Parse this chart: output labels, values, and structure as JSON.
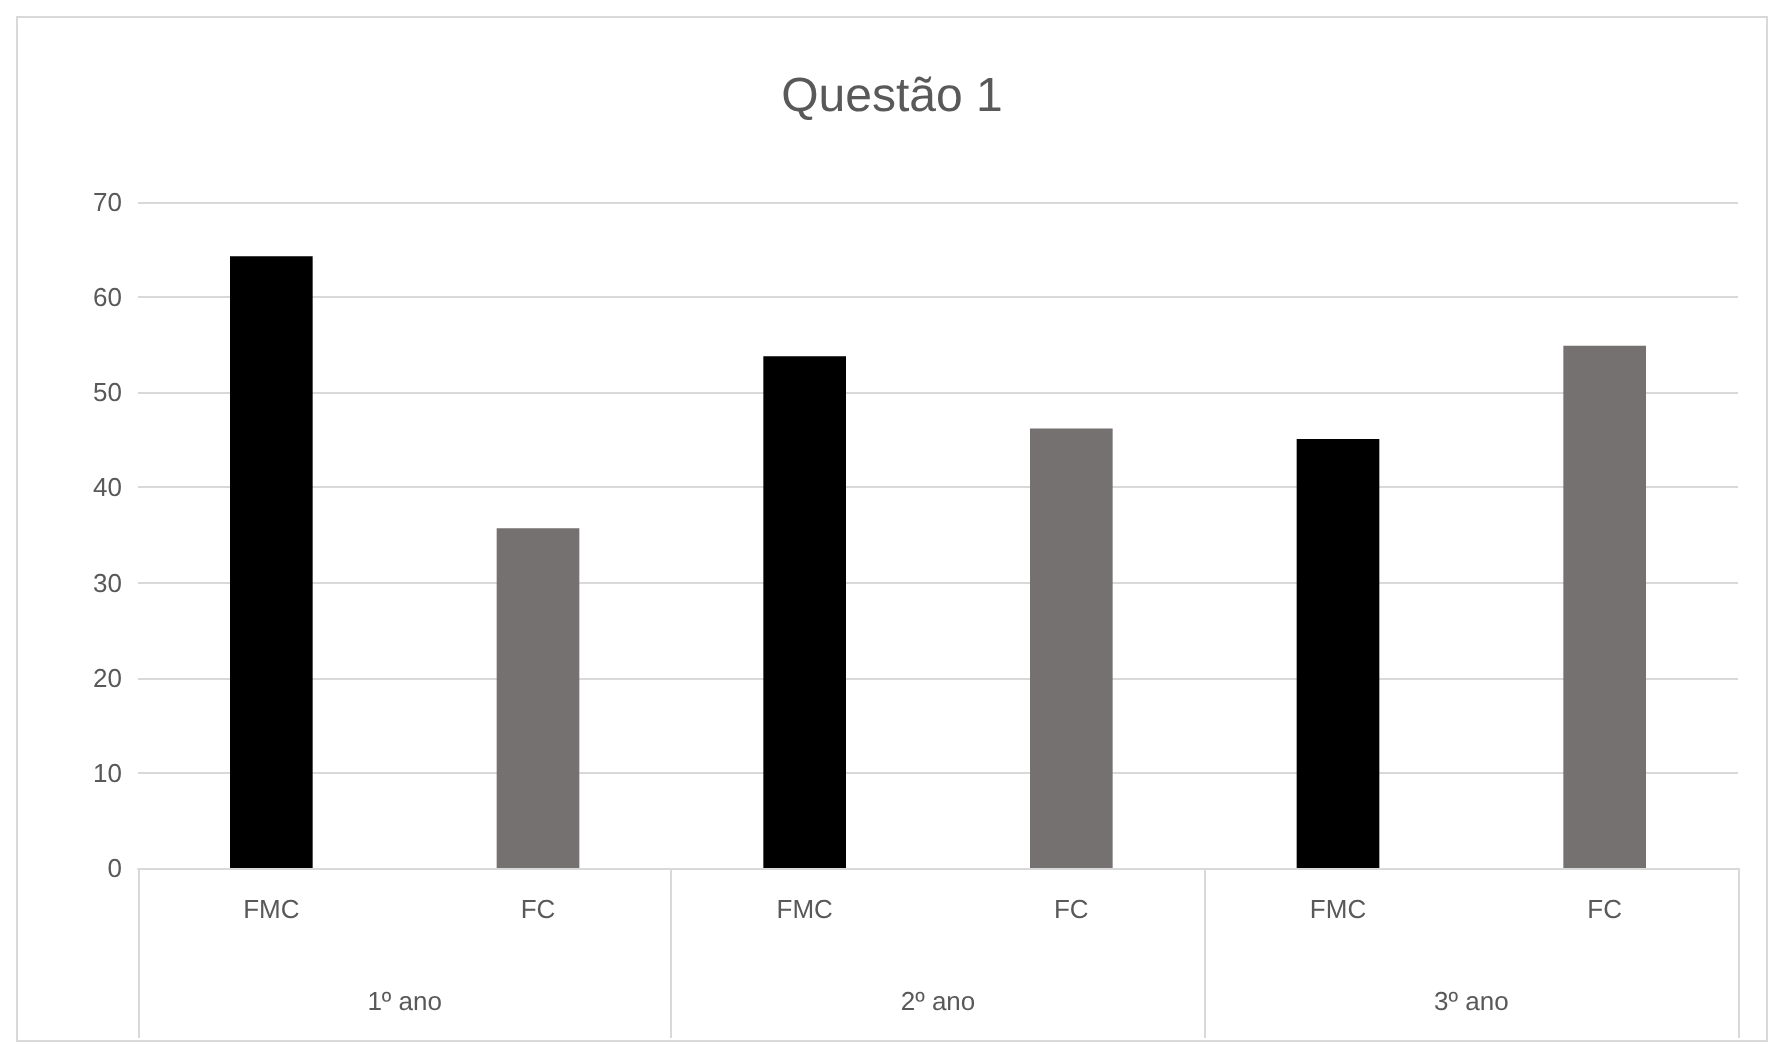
{
  "chart_data": {
    "type": "bar",
    "title": "Questão 1",
    "categories": [
      "FMC",
      "FC",
      "FMC",
      "FC",
      "FMC",
      "FC"
    ],
    "values": [
      64.3,
      35.7,
      53.8,
      46.2,
      45.1,
      54.9
    ],
    "colors": [
      "#000000",
      "#767171",
      "#000000",
      "#767171",
      "#000000",
      "#767171"
    ],
    "annotations": [
      "1º ano",
      "2º ano",
      "3º ano"
    ],
    "ylim": [
      0,
      70
    ],
    "yticks": [
      0,
      10,
      20,
      30,
      40,
      50,
      60,
      70
    ],
    "grid": "y"
  }
}
